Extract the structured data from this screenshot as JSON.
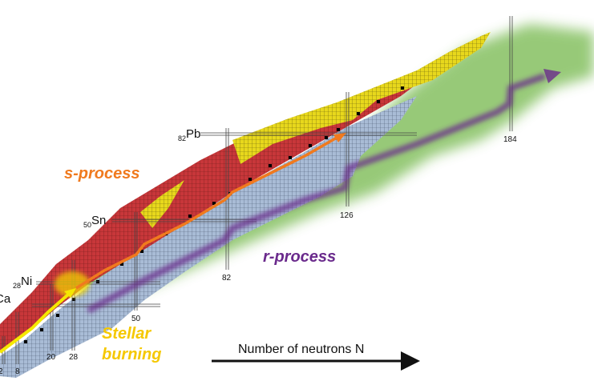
{
  "elements": [
    {
      "symbol": "Ca",
      "z": ""
    },
    {
      "symbol": "Ni",
      "z": "28"
    },
    {
      "symbol": "Sn",
      "z": "50"
    },
    {
      "symbol": "Pb",
      "z": "82"
    }
  ],
  "magic_numbers": [
    "2",
    "8",
    "20",
    "28",
    "50",
    "82",
    "126",
    "184"
  ],
  "processes": {
    "s_process": "s-process",
    "r_process": "r-process",
    "stellar_line1": "Stellar",
    "stellar_line2": "burning"
  },
  "axis_label": "Number of neutrons N",
  "colors": {
    "stable": "#000000",
    "known_neutron_rich": "#a9bcd6",
    "known_proton_rich": "#c8373a",
    "yellow_region": "#e8d81c",
    "green_region": "#8cc46a",
    "s_process": "#f07a1e",
    "r_process": "#6a2a8c",
    "stellar": "#f5c800"
  }
}
